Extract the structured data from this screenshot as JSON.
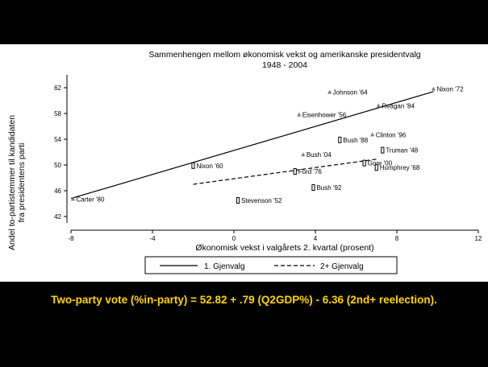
{
  "caption": "Two-party vote (%in-party) = 52.82 + .79 (Q2GDP%) - 6.36 (2nd+ reelection).",
  "chart_data": {
    "type": "scatter",
    "title": "Sammenhengen mellom økonomisk vekst og amerikanske presidentvalg",
    "subtitle": "1948 - 2004",
    "xlabel": "Økonomisk vekst i valgårets 2. kvartal (prosent)",
    "ylabel_lines": [
      "Andel to-partistemmer til kandidaten",
      "fra presidentens parti"
    ],
    "xlim": [
      -8,
      12
    ],
    "ylim": [
      41,
      64
    ],
    "xticks": [
      -8,
      -4,
      0,
      4,
      8,
      12
    ],
    "yticks": [
      42,
      46,
      50,
      54,
      58,
      62
    ],
    "grid": false,
    "series": [
      {
        "name": "1. Gjenvalg",
        "marker": "triangle",
        "points": [
          {
            "label": "Nixon '72",
            "x": 9.8,
            "y": 61.8
          },
          {
            "label": "Johnson '64",
            "x": 4.7,
            "y": 61.3
          },
          {
            "label": "Reagan '84",
            "x": 7.1,
            "y": 59.2
          },
          {
            "label": "Eisenhower '56",
            "x": 3.2,
            "y": 57.8
          },
          {
            "label": "Clinton '96",
            "x": 6.8,
            "y": 54.7
          },
          {
            "label": "Bush '04",
            "x": 3.4,
            "y": 51.6
          },
          {
            "label": "Carter '80",
            "x": -7.9,
            "y": 44.7
          }
        ]
      },
      {
        "name": "2+ Gjenvalg",
        "marker": "square",
        "points": [
          {
            "label": "Bush '88",
            "x": 5.2,
            "y": 53.9
          },
          {
            "label": "Truman '48",
            "x": 7.3,
            "y": 52.3
          },
          {
            "label": "Gore '00",
            "x": 6.4,
            "y": 50.3
          },
          {
            "label": "Humphrey '68",
            "x": 7.0,
            "y": 49.6
          },
          {
            "label": "Nixon '60",
            "x": -2.0,
            "y": 49.9
          },
          {
            "label": "Ford '76",
            "x": 3.0,
            "y": 49.0
          },
          {
            "label": "Bush '92",
            "x": 3.9,
            "y": 46.5
          },
          {
            "label": "Stevenson '52",
            "x": 0.2,
            "y": 44.5
          }
        ]
      }
    ],
    "fit_lines": [
      {
        "name": "1. Gjenvalg",
        "style": "solid",
        "from": [
          -8,
          44.8
        ],
        "to": [
          9.8,
          61.4
        ]
      },
      {
        "name": "2+ Gjenvalg",
        "style": "dashed",
        "from": [
          -2,
          47
        ],
        "to": [
          7,
          50.9
        ]
      }
    ],
    "legend": {
      "position": "bottom",
      "items": [
        "1. Gjenvalg",
        "2+ Gjenvalg"
      ]
    }
  }
}
